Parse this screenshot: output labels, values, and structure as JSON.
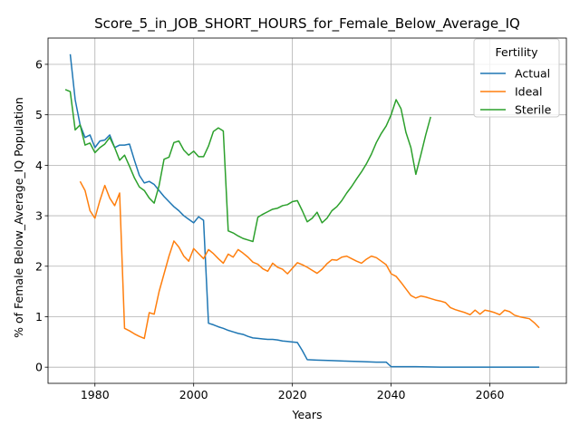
{
  "chart_data": {
    "type": "line",
    "title": "Score_5_in_JOB_SHORT_HOURS_for_Female_Below_Average_IQ",
    "xlabel": "Years",
    "ylabel": "% of Female Below_Average_IQ Population",
    "xlim": [
      1970.5,
      2075.5
    ],
    "ylim": [
      -0.32,
      6.52
    ],
    "xticks": [
      1980,
      2000,
      2020,
      2040,
      2060
    ],
    "yticks": [
      0,
      1,
      2,
      3,
      4,
      5,
      6
    ],
    "grid": true,
    "legend": {
      "title": "Fertility",
      "placement": "top-right"
    },
    "series": [
      {
        "name": "Actual",
        "color": "#1f77b4",
        "points": [
          [
            1975,
            6.2
          ],
          [
            1976,
            5.3
          ],
          [
            1977,
            4.8
          ],
          [
            1978,
            4.55
          ],
          [
            1979,
            4.6
          ],
          [
            1980,
            4.35
          ],
          [
            1981,
            4.48
          ],
          [
            1982,
            4.5
          ],
          [
            1983,
            4.6
          ],
          [
            1984,
            4.35
          ],
          [
            1985,
            4.4
          ],
          [
            1986,
            4.4
          ],
          [
            1987,
            4.42
          ],
          [
            1988,
            4.1
          ],
          [
            1989,
            3.8
          ],
          [
            1990,
            3.65
          ],
          [
            1991,
            3.68
          ],
          [
            1992,
            3.62
          ],
          [
            1993,
            3.5
          ],
          [
            1994,
            3.38
          ],
          [
            1995,
            3.28
          ],
          [
            1996,
            3.18
          ],
          [
            1997,
            3.1
          ],
          [
            1998,
            3.0
          ],
          [
            1999,
            2.93
          ],
          [
            2000,
            2.86
          ],
          [
            2001,
            2.98
          ],
          [
            2002,
            2.91
          ],
          [
            2003,
            0.87
          ],
          [
            2004,
            0.84
          ],
          [
            2005,
            0.8
          ],
          [
            2006,
            0.77
          ],
          [
            2007,
            0.73
          ],
          [
            2008,
            0.7
          ],
          [
            2009,
            0.67
          ],
          [
            2010,
            0.65
          ],
          [
            2011,
            0.61
          ],
          [
            2012,
            0.58
          ],
          [
            2013,
            0.57
          ],
          [
            2014,
            0.56
          ],
          [
            2015,
            0.55
          ],
          [
            2016,
            0.55
          ],
          [
            2017,
            0.54
          ],
          [
            2018,
            0.52
          ],
          [
            2019,
            0.51
          ],
          [
            2020,
            0.5
          ],
          [
            2021,
            0.49
          ],
          [
            2022,
            0.33
          ],
          [
            2023,
            0.15
          ],
          [
            2025,
            0.14
          ],
          [
            2028,
            0.13
          ],
          [
            2031,
            0.12
          ],
          [
            2034,
            0.11
          ],
          [
            2037,
            0.1
          ],
          [
            2039,
            0.1
          ],
          [
            2040,
            0.01
          ],
          [
            2045,
            0.01
          ],
          [
            2050,
            0.0
          ],
          [
            2055,
            0.0
          ],
          [
            2060,
            0.0
          ],
          [
            2065,
            0.0
          ],
          [
            2070,
            0.0
          ]
        ]
      },
      {
        "name": "Ideal",
        "color": "#ff7f0e",
        "points": [
          [
            1977,
            3.68
          ],
          [
            1978,
            3.5
          ],
          [
            1979,
            3.1
          ],
          [
            1980,
            2.95
          ],
          [
            1981,
            3.3
          ],
          [
            1982,
            3.6
          ],
          [
            1983,
            3.35
          ],
          [
            1984,
            3.2
          ],
          [
            1985,
            3.45
          ],
          [
            1986,
            0.77
          ],
          [
            1987,
            0.72
          ],
          [
            1988,
            0.66
          ],
          [
            1989,
            0.61
          ],
          [
            1990,
            0.57
          ],
          [
            1991,
            1.08
          ],
          [
            1992,
            1.05
          ],
          [
            1993,
            1.5
          ],
          [
            1994,
            1.85
          ],
          [
            1995,
            2.2
          ],
          [
            1996,
            2.5
          ],
          [
            1997,
            2.38
          ],
          [
            1998,
            2.2
          ],
          [
            1999,
            2.1
          ],
          [
            2000,
            2.35
          ],
          [
            2001,
            2.25
          ],
          [
            2002,
            2.15
          ],
          [
            2003,
            2.33
          ],
          [
            2004,
            2.25
          ],
          [
            2005,
            2.15
          ],
          [
            2006,
            2.06
          ],
          [
            2007,
            2.24
          ],
          [
            2008,
            2.18
          ],
          [
            2009,
            2.33
          ],
          [
            2010,
            2.26
          ],
          [
            2011,
            2.18
          ],
          [
            2012,
            2.08
          ],
          [
            2013,
            2.04
          ],
          [
            2014,
            1.95
          ],
          [
            2015,
            1.9
          ],
          [
            2016,
            2.06
          ],
          [
            2017,
            1.98
          ],
          [
            2018,
            1.94
          ],
          [
            2019,
            1.85
          ],
          [
            2020,
            1.96
          ],
          [
            2021,
            2.07
          ],
          [
            2022,
            2.03
          ],
          [
            2023,
            1.98
          ],
          [
            2024,
            1.92
          ],
          [
            2025,
            1.86
          ],
          [
            2026,
            1.94
          ],
          [
            2027,
            2.05
          ],
          [
            2028,
            2.13
          ],
          [
            2029,
            2.12
          ],
          [
            2030,
            2.18
          ],
          [
            2031,
            2.2
          ],
          [
            2032,
            2.15
          ],
          [
            2033,
            2.1
          ],
          [
            2034,
            2.06
          ],
          [
            2035,
            2.14
          ],
          [
            2036,
            2.2
          ],
          [
            2037,
            2.17
          ],
          [
            2038,
            2.1
          ],
          [
            2039,
            2.03
          ],
          [
            2040,
            1.85
          ],
          [
            2041,
            1.8
          ],
          [
            2042,
            1.68
          ],
          [
            2043,
            1.55
          ],
          [
            2044,
            1.42
          ],
          [
            2045,
            1.37
          ],
          [
            2046,
            1.41
          ],
          [
            2047,
            1.39
          ],
          [
            2048,
            1.36
          ],
          [
            2049,
            1.33
          ],
          [
            2050,
            1.31
          ],
          [
            2051,
            1.28
          ],
          [
            2052,
            1.18
          ],
          [
            2053,
            1.14
          ],
          [
            2054,
            1.11
          ],
          [
            2055,
            1.08
          ],
          [
            2056,
            1.04
          ],
          [
            2057,
            1.13
          ],
          [
            2058,
            1.05
          ],
          [
            2059,
            1.13
          ],
          [
            2060,
            1.11
          ],
          [
            2061,
            1.08
          ],
          [
            2062,
            1.04
          ],
          [
            2063,
            1.13
          ],
          [
            2064,
            1.1
          ],
          [
            2065,
            1.03
          ],
          [
            2066,
            1.0
          ],
          [
            2067,
            0.98
          ],
          [
            2068,
            0.96
          ],
          [
            2069,
            0.88
          ],
          [
            2070,
            0.78
          ]
        ]
      },
      {
        "name": "Sterile",
        "color": "#2ca02c",
        "points": [
          [
            1974,
            5.5
          ],
          [
            1975,
            5.46
          ],
          [
            1976,
            4.7
          ],
          [
            1977,
            4.8
          ],
          [
            1978,
            4.4
          ],
          [
            1979,
            4.44
          ],
          [
            1980,
            4.25
          ],
          [
            1981,
            4.35
          ],
          [
            1982,
            4.42
          ],
          [
            1983,
            4.55
          ],
          [
            1984,
            4.35
          ],
          [
            1985,
            4.1
          ],
          [
            1986,
            4.2
          ],
          [
            1987,
            3.98
          ],
          [
            1988,
            3.75
          ],
          [
            1989,
            3.57
          ],
          [
            1990,
            3.5
          ],
          [
            1991,
            3.35
          ],
          [
            1992,
            3.25
          ],
          [
            1993,
            3.6
          ],
          [
            1994,
            4.12
          ],
          [
            1995,
            4.16
          ],
          [
            1996,
            4.45
          ],
          [
            1997,
            4.48
          ],
          [
            1998,
            4.3
          ],
          [
            1999,
            4.2
          ],
          [
            2000,
            4.28
          ],
          [
            2001,
            4.17
          ],
          [
            2002,
            4.17
          ],
          [
            2003,
            4.38
          ],
          [
            2004,
            4.67
          ],
          [
            2005,
            4.74
          ],
          [
            2006,
            4.68
          ],
          [
            2007,
            2.7
          ],
          [
            2008,
            2.66
          ],
          [
            2009,
            2.6
          ],
          [
            2010,
            2.55
          ],
          [
            2011,
            2.52
          ],
          [
            2012,
            2.49
          ],
          [
            2013,
            2.97
          ],
          [
            2014,
            3.03
          ],
          [
            2015,
            3.08
          ],
          [
            2016,
            3.13
          ],
          [
            2017,
            3.15
          ],
          [
            2018,
            3.2
          ],
          [
            2019,
            3.22
          ],
          [
            2020,
            3.28
          ],
          [
            2021,
            3.3
          ],
          [
            2022,
            3.1
          ],
          [
            2023,
            2.88
          ],
          [
            2024,
            2.95
          ],
          [
            2025,
            3.07
          ],
          [
            2026,
            2.86
          ],
          [
            2027,
            2.95
          ],
          [
            2028,
            3.1
          ],
          [
            2029,
            3.18
          ],
          [
            2030,
            3.3
          ],
          [
            2031,
            3.45
          ],
          [
            2032,
            3.58
          ],
          [
            2033,
            3.73
          ],
          [
            2034,
            3.87
          ],
          [
            2035,
            4.03
          ],
          [
            2036,
            4.22
          ],
          [
            2037,
            4.45
          ],
          [
            2038,
            4.63
          ],
          [
            2039,
            4.78
          ],
          [
            2040,
            5.0
          ],
          [
            2041,
            5.3
          ],
          [
            2042,
            5.12
          ],
          [
            2043,
            4.65
          ],
          [
            2044,
            4.35
          ],
          [
            2045,
            3.82
          ],
          [
            2046,
            4.2
          ],
          [
            2047,
            4.6
          ],
          [
            2048,
            4.96
          ]
        ]
      }
    ]
  }
}
